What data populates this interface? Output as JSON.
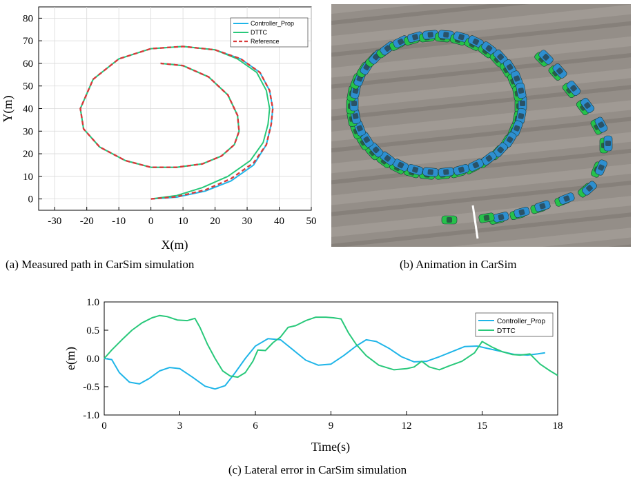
{
  "colors": {
    "controller": "#1fb5e8",
    "dttc": "#28c87a",
    "reference": "#d83a3a",
    "ground": "#8f8983",
    "car_blue": "#2d8fd0",
    "car_green": "#26c24a"
  },
  "captions": {
    "a": "(a) Measured path in CarSim simulation",
    "b": "(b) Animation in CarSim",
    "c": "(c) Lateral error in CarSim simulation"
  },
  "chart_data": [
    {
      "id": "a",
      "type": "line",
      "title": "",
      "xlabel": "X(m)",
      "ylabel": "Y(m)",
      "xlim": [
        -35,
        50
      ],
      "ylim": [
        -5,
        85
      ],
      "xticks": [
        -30,
        -20,
        -10,
        0,
        10,
        20,
        30,
        40,
        50
      ],
      "yticks": [
        0,
        10,
        20,
        30,
        40,
        50,
        60,
        70,
        80
      ],
      "grid": true,
      "legend": "top-right",
      "series": [
        {
          "name": "Controller_Prop",
          "style": "solid",
          "x": [
            0,
            8,
            17,
            25,
            32,
            36,
            37.5,
            38,
            37,
            34,
            28,
            20,
            10,
            0,
            -10,
            -18,
            -22,
            -21,
            -16,
            -8,
            0,
            8,
            16,
            22,
            26,
            27.5,
            27,
            24,
            18,
            10,
            3
          ],
          "y": [
            0,
            0.8,
            3.5,
            8,
            15,
            24,
            33,
            40,
            48,
            56,
            62,
            66,
            67.5,
            66.5,
            62,
            53,
            40,
            31,
            23,
            17,
            14,
            14,
            15.5,
            19,
            24,
            30,
            37,
            46,
            54,
            59,
            60
          ]
        },
        {
          "name": "DTTC",
          "style": "solid",
          "x": [
            0,
            8,
            16,
            24,
            31,
            35,
            36.5,
            37,
            36,
            33,
            27,
            20,
            10,
            0,
            -10,
            -18,
            -22,
            -21,
            -16,
            -8,
            0,
            8,
            16,
            22,
            26,
            27.5,
            27,
            24,
            18,
            10,
            3
          ],
          "y": [
            0,
            1.5,
            5,
            10,
            17,
            25,
            33,
            40,
            48,
            56,
            62,
            66,
            67.5,
            66.5,
            62,
            53,
            40,
            31,
            23,
            17,
            14,
            14,
            15.5,
            19,
            24,
            30,
            37,
            46,
            54,
            59,
            60
          ]
        },
        {
          "name": "Reference",
          "style": "dashed",
          "x": [
            0,
            8,
            17,
            25,
            32,
            36,
            37.5,
            38,
            37,
            34,
            28,
            20,
            10,
            0,
            -10,
            -18,
            -22,
            -21,
            -16,
            -8,
            0,
            8,
            16,
            22,
            26,
            27.5,
            27,
            24,
            18,
            10,
            3
          ],
          "y": [
            0,
            1,
            4,
            9,
            16,
            24,
            33,
            40,
            48,
            56,
            62,
            66,
            67.5,
            66.5,
            62,
            53,
            40,
            31,
            23,
            17,
            14,
            14,
            15.5,
            19,
            24,
            30,
            37,
            46,
            54,
            59,
            60
          ]
        }
      ]
    },
    {
      "id": "c",
      "type": "line",
      "title": "",
      "xlabel": "Time(s)",
      "ylabel": "e(m)",
      "xlim": [
        0,
        18
      ],
      "ylim": [
        -1.0,
        1.0
      ],
      "xticks": [
        0,
        3,
        6,
        9,
        12,
        15,
        18
      ],
      "yticks": [
        -1.0,
        -0.5,
        0.0,
        0.5,
        1.0
      ],
      "ytick_labels": [
        "-1.0",
        "-0.5",
        "0.0",
        "0.5",
        "1.0"
      ],
      "grid": false,
      "legend": "top-right",
      "series": [
        {
          "name": "Controller_Prop",
          "x": [
            0,
            0.3,
            0.6,
            1.0,
            1.4,
            1.8,
            2.2,
            2.6,
            3.0,
            3.5,
            4.0,
            4.4,
            4.8,
            5.2,
            5.6,
            6.0,
            6.5,
            7.0,
            7.5,
            8.0,
            8.5,
            9.0,
            9.5,
            10.0,
            10.4,
            10.8,
            11.3,
            11.8,
            12.3,
            12.8,
            13.3,
            13.8,
            14.3,
            14.8,
            15.3,
            15.8,
            16.3,
            16.8,
            17.2,
            17.5
          ],
          "y": [
            0,
            -0.02,
            -0.25,
            -0.42,
            -0.45,
            -0.35,
            -0.22,
            -0.16,
            -0.18,
            -0.33,
            -0.49,
            -0.54,
            -0.48,
            -0.25,
            0.0,
            0.22,
            0.35,
            0.33,
            0.15,
            -0.03,
            -0.12,
            -0.1,
            0.05,
            0.22,
            0.33,
            0.3,
            0.18,
            0.03,
            -0.06,
            -0.05,
            0.03,
            0.12,
            0.21,
            0.22,
            0.17,
            0.12,
            0.07,
            0.06,
            0.08,
            0.1
          ]
        },
        {
          "name": "DTTC",
          "x": [
            0,
            0.3,
            0.7,
            1.1,
            1.5,
            1.9,
            2.2,
            2.5,
            2.9,
            3.3,
            3.6,
            3.8,
            4.1,
            4.4,
            4.7,
            5.0,
            5.3,
            5.6,
            5.9,
            6.1,
            6.4,
            6.7,
            7.0,
            7.3,
            7.6,
            8.0,
            8.4,
            8.8,
            9.1,
            9.4,
            9.7,
            10.0,
            10.4,
            10.9,
            11.5,
            12.0,
            12.3,
            12.6,
            12.9,
            13.3,
            13.7,
            14.2,
            14.7,
            15.0,
            15.4,
            15.8,
            16.2,
            16.5,
            16.9,
            17.3,
            17.7,
            18.0
          ],
          "y": [
            0,
            0.15,
            0.33,
            0.5,
            0.63,
            0.72,
            0.76,
            0.74,
            0.68,
            0.67,
            0.71,
            0.55,
            0.25,
            0.0,
            -0.22,
            -0.31,
            -0.33,
            -0.25,
            -0.05,
            0.15,
            0.14,
            0.28,
            0.38,
            0.55,
            0.58,
            0.67,
            0.73,
            0.73,
            0.72,
            0.7,
            0.45,
            0.25,
            0.05,
            -0.12,
            -0.2,
            -0.18,
            -0.15,
            -0.05,
            -0.15,
            -0.2,
            -0.13,
            -0.05,
            0.1,
            0.3,
            0.2,
            0.12,
            0.07,
            0.06,
            0.08,
            -0.1,
            -0.22,
            -0.3
          ]
        }
      ]
    }
  ]
}
